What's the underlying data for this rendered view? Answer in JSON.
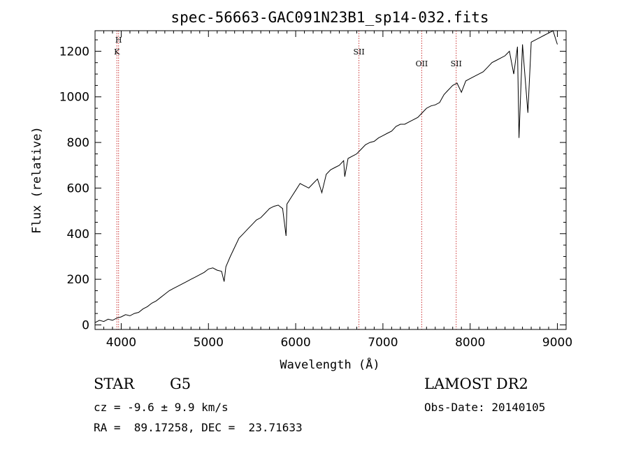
{
  "chart_data": {
    "type": "line",
    "title": "spec-56663-GAC091N23B1_sp14-032.fits",
    "xlabel": "Wavelength (Å)",
    "ylabel": "Flux (relative)",
    "xlim": [
      3700,
      9100
    ],
    "ylim": [
      -20,
      1290
    ],
    "xticks": [
      4000,
      5000,
      6000,
      7000,
      8000,
      9000
    ],
    "yticks": [
      0,
      200,
      400,
      600,
      800,
      1000,
      1200
    ],
    "grid": false,
    "series": [
      {
        "x": [
          3700,
          3750,
          3800,
          3850,
          3900,
          3950,
          4000,
          4050,
          4100,
          4150,
          4200,
          4250,
          4300,
          4350,
          4400,
          4450,
          4500,
          4550,
          4600,
          4650,
          4700,
          4750,
          4800,
          4850,
          4900,
          4950,
          5000,
          5050,
          5100,
          5150,
          5180,
          5200,
          5250,
          5300,
          5350,
          5400,
          5450,
          5500,
          5550,
          5600,
          5650,
          5700,
          5750,
          5800,
          5850,
          5890,
          5900,
          5950,
          6000,
          6050,
          6100,
          6150,
          6200,
          6250,
          6300,
          6350,
          6400,
          6450,
          6500,
          6550,
          6563,
          6600,
          6650,
          6700,
          6750,
          6800,
          6850,
          6900,
          6950,
          7000,
          7050,
          7100,
          7150,
          7200,
          7250,
          7300,
          7350,
          7400,
          7450,
          7500,
          7550,
          7600,
          7650,
          7700,
          7750,
          7800,
          7850,
          7900,
          7950,
          8000,
          8050,
          8100,
          8150,
          8200,
          8250,
          8300,
          8350,
          8400,
          8450,
          8500,
          8542,
          8560,
          8600,
          8662,
          8700,
          8750,
          8800,
          8850,
          8900,
          8950,
          9000
        ],
        "y": [
          10,
          20,
          15,
          25,
          20,
          30,
          35,
          45,
          40,
          50,
          55,
          70,
          80,
          95,
          105,
          120,
          135,
          150,
          160,
          170,
          180,
          190,
          200,
          210,
          220,
          230,
          245,
          250,
          240,
          235,
          190,
          255,
          300,
          340,
          380,
          400,
          420,
          440,
          460,
          470,
          490,
          510,
          520,
          525,
          510,
          390,
          530,
          560,
          590,
          620,
          610,
          600,
          620,
          640,
          580,
          660,
          680,
          690,
          700,
          720,
          650,
          730,
          740,
          750,
          770,
          790,
          800,
          805,
          820,
          830,
          840,
          850,
          870,
          880,
          880,
          890,
          900,
          910,
          930,
          950,
          960,
          965,
          975,
          1010,
          1030,
          1050,
          1060,
          1020,
          1070,
          1080,
          1090,
          1100,
          1110,
          1130,
          1150,
          1160,
          1170,
          1180,
          1200,
          1100,
          1220,
          820,
          1230,
          930,
          1240,
          1250,
          1260,
          1270,
          1280,
          1290,
          1230
        ]
      }
    ],
    "line_markers": [
      {
        "x": 3950,
        "label": "K"
      },
      {
        "x": 3970,
        "label": "H"
      },
      {
        "x": 6725,
        "label": "SII"
      },
      {
        "x": 7445,
        "label": "OII"
      },
      {
        "x": 7840,
        "label": "SII"
      }
    ]
  },
  "info": {
    "object_type": "STAR",
    "subclass": "G5",
    "cz": "cz = -9.6 ± 9.9 km/s",
    "coords": "RA =  89.17258, DEC =  23.71633",
    "survey": "LAMOST DR2",
    "obs_date": "Obs-Date: 20140105"
  },
  "colors": {
    "axis": "#000000",
    "spectrum": "#000000",
    "marker": "#cc3333"
  }
}
